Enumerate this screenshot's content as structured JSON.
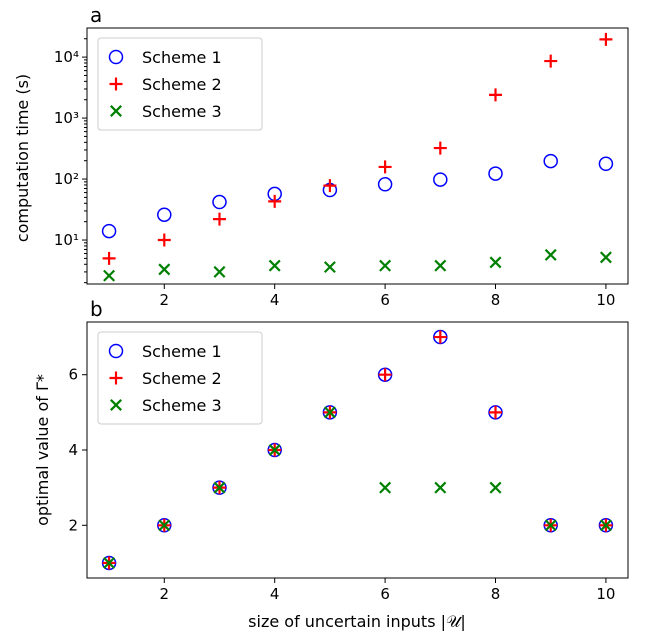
{
  "chart_data": [
    {
      "panel_label": "a",
      "type": "scatter",
      "ylabel": "computation time (s)",
      "xlabel": "",
      "y_scale": "log",
      "xlim": [
        0.6,
        10.4
      ],
      "ylim": [
        1.9,
        30000
      ],
      "x_ticks": [
        2,
        4,
        6,
        8,
        10
      ],
      "y_ticks": [
        10,
        100,
        1000,
        10000
      ],
      "legend_position": "upper-left",
      "series": [
        {
          "name": "Scheme 1",
          "marker": "circle",
          "color": "#0000ff",
          "x": [
            1,
            2,
            3,
            4,
            5,
            6,
            7,
            8,
            9,
            10
          ],
          "y": [
            14,
            26,
            42,
            57,
            66,
            82,
            98,
            123,
            197,
            178
          ]
        },
        {
          "name": "Scheme 2",
          "marker": "plus",
          "color": "#ff0000",
          "x": [
            1,
            2,
            3,
            4,
            5,
            6,
            7,
            8,
            9,
            10
          ],
          "y": [
            5,
            10,
            22,
            43,
            78,
            158,
            322,
            2400,
            8600,
            19500
          ]
        },
        {
          "name": "Scheme 3",
          "marker": "x",
          "color": "#008000",
          "x": [
            1,
            2,
            3,
            4,
            5,
            6,
            7,
            8,
            9,
            10
          ],
          "y": [
            2.6,
            3.3,
            3.0,
            3.8,
            3.6,
            3.8,
            3.8,
            4.3,
            5.7,
            5.2
          ]
        }
      ]
    },
    {
      "panel_label": "b",
      "type": "scatter",
      "ylabel": "optimal value of Γ*",
      "xlabel": "size of uncertain inputs |𝒰|",
      "y_scale": "linear",
      "xlim": [
        0.6,
        10.4
      ],
      "ylim": [
        0.6,
        7.4
      ],
      "x_ticks": [
        2,
        4,
        6,
        8,
        10
      ],
      "y_ticks": [
        2,
        4,
        6
      ],
      "legend_position": "upper-left",
      "series": [
        {
          "name": "Scheme 1",
          "marker": "circle",
          "color": "#0000ff",
          "x": [
            1,
            2,
            3,
            4,
            5,
            6,
            7,
            8,
            9,
            10
          ],
          "y": [
            1,
            2,
            3,
            4,
            5,
            6,
            7,
            5,
            2,
            2
          ]
        },
        {
          "name": "Scheme 2",
          "marker": "plus",
          "color": "#ff0000",
          "x": [
            1,
            2,
            3,
            4,
            5,
            6,
            7,
            8,
            9,
            10
          ],
          "y": [
            1,
            2,
            3,
            4,
            5,
            6,
            7,
            5,
            2,
            2
          ]
        },
        {
          "name": "Scheme 3",
          "marker": "x",
          "color": "#008000",
          "x": [
            1,
            2,
            3,
            4,
            5,
            6,
            7,
            8,
            9,
            10
          ],
          "y": [
            1,
            2,
            3,
            4,
            5,
            3,
            3,
            3,
            2,
            2
          ]
        }
      ]
    }
  ]
}
